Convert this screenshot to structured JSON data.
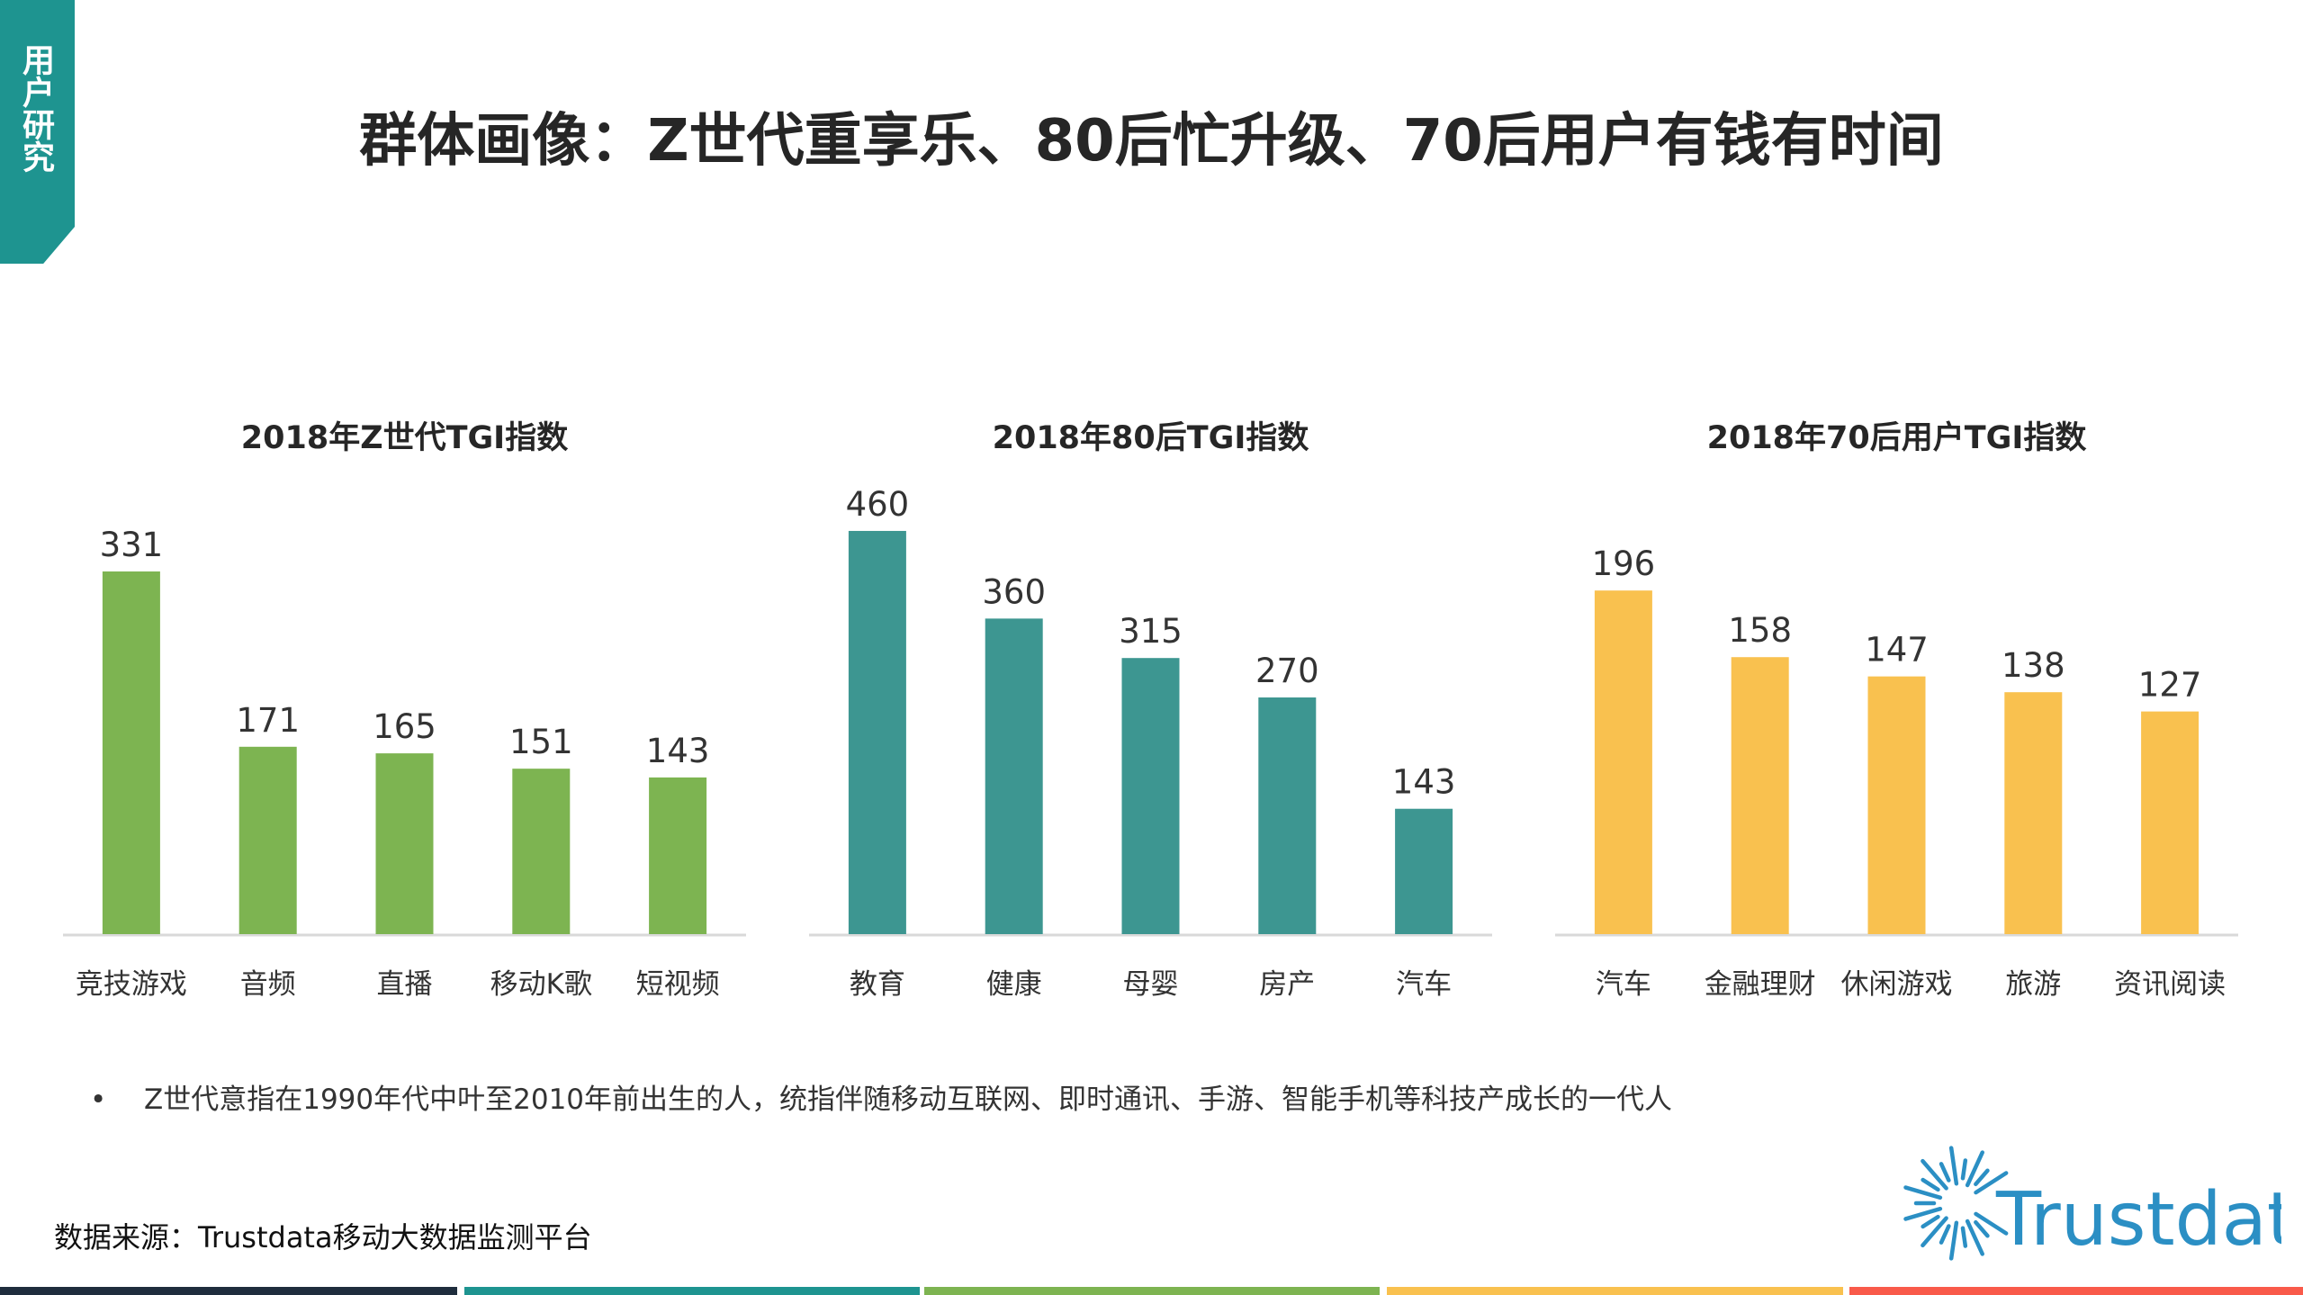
{
  "side_tab": {
    "label": "用户研究"
  },
  "title": "群体画像：Z世代重享乐、80后忙升级、70后用户有钱有时间",
  "colors": {
    "green": "#7db451",
    "teal": "#3d9691",
    "yellow": "#f9c14f",
    "tab": "#1e9490",
    "footer": [
      "#1f2d3d",
      "#1e9490",
      "#7db451",
      "#f9c14f",
      "#f95a4a"
    ],
    "logo": "#2b8fc4"
  },
  "chart_data": [
    {
      "type": "bar",
      "title": "2018年Z世代TGI指数",
      "categories": [
        "竞技游戏",
        "音频",
        "直播",
        "移动K歌",
        "短视频"
      ],
      "values": [
        331,
        171,
        165,
        151,
        143
      ],
      "ylim": [
        0,
        400
      ],
      "color": "#7db451",
      "grid": false
    },
    {
      "type": "bar",
      "title": "2018年80后TGI指数",
      "categories": [
        "教育",
        "健康",
        "母婴",
        "房产",
        "汽车"
      ],
      "values": [
        460,
        360,
        315,
        270,
        143
      ],
      "ylim": [
        0,
        500
      ],
      "color": "#3d9691",
      "grid": false
    },
    {
      "type": "bar",
      "title": "2018年70后用户TGI指数",
      "categories": [
        "汽车",
        "金融理财",
        "休闲游戏",
        "旅游",
        "资讯阅读"
      ],
      "values": [
        196,
        158,
        147,
        138,
        127
      ],
      "ylim": [
        0,
        250
      ],
      "color": "#f9c14f",
      "grid": false
    }
  ],
  "note": {
    "bullet": "•",
    "text": "Z世代意指在1990年代中叶至2010年前出生的人，统指伴随移动互联网、即时通讯、手游、智能手机等科技产成长的一代人"
  },
  "source": "数据来源：Trustdata移动大数据监测平台",
  "logo": {
    "text": "Trustdata",
    "icon": "sunburst-icon"
  }
}
